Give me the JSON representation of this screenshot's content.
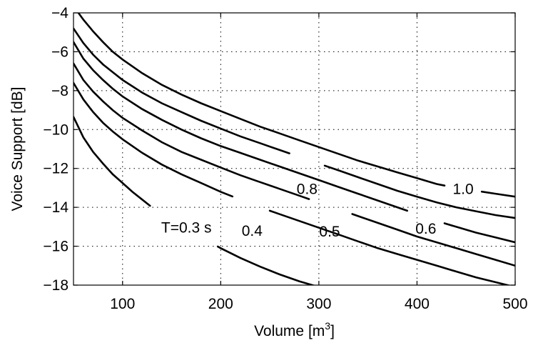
{
  "chart_data": {
    "type": "line",
    "title": "",
    "xlabel_prefix": "Volume [m",
    "xlabel_sup": "3",
    "xlabel_suffix": "]",
    "ylabel": "Voice Support [dB]",
    "xlim": [
      50,
      500
    ],
    "ylim": [
      -18,
      -4
    ],
    "xticks": [
      100,
      200,
      300,
      400,
      500
    ],
    "yticks": [
      -4,
      -6,
      -8,
      -10,
      -12,
      -14,
      -16,
      -18
    ],
    "xtick_labels": [
      "100",
      "200",
      "300",
      "400",
      "500"
    ],
    "ytick_labels": [
      "−4",
      "−6",
      "−8",
      "−10",
      "−12",
      "−14",
      "−16",
      "−18"
    ],
    "grid": true,
    "series": [
      {
        "name": "T=0.3 s",
        "label": "T=0.3 s",
        "label_x": 165,
        "label_y": -15.05,
        "gap": [
          128,
          197
        ],
        "x": [
          50,
          60,
          70,
          80,
          90,
          100,
          110,
          120,
          130,
          140,
          160,
          180,
          200,
          220,
          240,
          260,
          280,
          300,
          320
        ],
        "y": [
          -9.35,
          -10.4,
          -11.15,
          -11.75,
          -12.3,
          -12.75,
          -13.2,
          -13.6,
          -14.0,
          -14.4,
          -15.0,
          -15.55,
          -16.1,
          -16.6,
          -17.05,
          -17.45,
          -17.8,
          -18.1,
          -18.4
        ]
      },
      {
        "name": "0.4",
        "label": "0.4",
        "label_x": 232,
        "label_y": -15.2,
        "gap": [
          212,
          250
        ],
        "x": [
          50,
          60,
          70,
          80,
          90,
          100,
          120,
          140,
          160,
          180,
          200,
          220,
          240,
          260,
          280,
          300,
          320,
          340,
          360,
          380,
          400,
          420,
          440,
          460,
          480,
          500
        ],
        "y": [
          -7.6,
          -8.45,
          -9.1,
          -9.65,
          -10.1,
          -10.5,
          -11.2,
          -11.8,
          -12.3,
          -12.75,
          -13.2,
          -13.6,
          -14.0,
          -14.35,
          -14.7,
          -15.05,
          -15.4,
          -15.75,
          -16.1,
          -16.4,
          -16.7,
          -17.0,
          -17.3,
          -17.6,
          -17.85,
          -18.1
        ]
      },
      {
        "name": "0.5",
        "label": "0.5",
        "label_x": 311,
        "label_y": -15.25,
        "gap": [
          290,
          334
        ],
        "x": [
          50,
          60,
          70,
          80,
          90,
          100,
          120,
          140,
          160,
          180,
          200,
          220,
          240,
          260,
          280,
          300,
          320,
          340,
          360,
          380,
          400,
          420,
          440,
          460,
          480,
          500
        ],
        "y": [
          -6.6,
          -7.45,
          -8.05,
          -8.55,
          -9.0,
          -9.4,
          -10.05,
          -10.65,
          -11.15,
          -11.55,
          -11.95,
          -12.35,
          -12.7,
          -13.05,
          -13.4,
          -13.75,
          -14.1,
          -14.45,
          -14.8,
          -15.15,
          -15.5,
          -15.8,
          -16.1,
          -16.4,
          -16.7,
          -17.0
        ]
      },
      {
        "name": "0.6",
        "label": "0.6",
        "label_x": 409,
        "label_y": -15.1,
        "gap": [
          390,
          428
        ],
        "x": [
          50,
          60,
          70,
          80,
          90,
          100,
          120,
          140,
          160,
          180,
          200,
          220,
          240,
          260,
          280,
          300,
          320,
          340,
          360,
          380,
          400,
          420,
          440,
          460,
          480,
          500
        ],
        "y": [
          -5.5,
          -6.35,
          -6.95,
          -7.45,
          -7.9,
          -8.3,
          -8.95,
          -9.5,
          -10.0,
          -10.45,
          -10.85,
          -11.2,
          -11.55,
          -11.9,
          -12.25,
          -12.6,
          -12.95,
          -13.3,
          -13.65,
          -14.0,
          -14.35,
          -14.7,
          -15.0,
          -15.3,
          -15.55,
          -15.8
        ]
      },
      {
        "name": "0.8",
        "label": "0.8",
        "label_x": 288,
        "label_y": -13.05,
        "gap": [
          270,
          306
        ],
        "x": [
          50,
          60,
          70,
          80,
          90,
          100,
          120,
          140,
          160,
          180,
          200,
          220,
          240,
          260,
          280,
          300,
          320,
          340,
          360,
          380,
          400,
          420,
          440,
          460,
          480,
          500
        ],
        "y": [
          -4.8,
          -5.55,
          -6.15,
          -6.65,
          -7.05,
          -7.45,
          -8.1,
          -8.65,
          -9.1,
          -9.55,
          -9.95,
          -10.35,
          -10.7,
          -11.05,
          -11.4,
          -11.75,
          -12.1,
          -12.45,
          -12.8,
          -13.15,
          -13.45,
          -13.75,
          -14.0,
          -14.2,
          -14.4,
          -14.55
        ]
      },
      {
        "name": "1.0",
        "label": "1.0",
        "label_x": 447,
        "label_y": -13.05,
        "gap": [
          428,
          466
        ],
        "x": [
          55,
          60,
          70,
          80,
          90,
          100,
          120,
          140,
          160,
          180,
          200,
          220,
          240,
          260,
          280,
          300,
          320,
          340,
          360,
          380,
          400,
          420,
          440,
          460,
          480,
          500
        ],
        "y": [
          -4.0,
          -4.35,
          -4.95,
          -5.5,
          -6.0,
          -6.4,
          -7.1,
          -7.7,
          -8.2,
          -8.65,
          -9.05,
          -9.45,
          -9.85,
          -10.2,
          -10.55,
          -10.9,
          -11.25,
          -11.6,
          -11.9,
          -12.2,
          -12.5,
          -12.8,
          -13.0,
          -13.15,
          -13.3,
          -13.45
        ]
      }
    ]
  }
}
